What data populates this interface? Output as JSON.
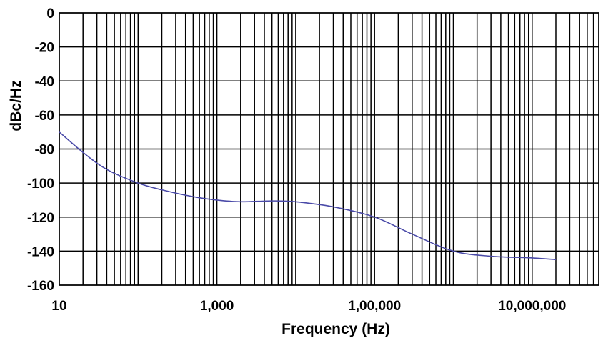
{
  "chart_data": {
    "type": "line",
    "title": "",
    "xlabel": "Frequency (Hz)",
    "ylabel": "dBc/Hz",
    "x_scale": "log",
    "xlim": [
      10,
      70000000
    ],
    "ylim": [
      -160,
      0
    ],
    "grid": true,
    "x_ticks": [
      {
        "value": 10,
        "label": "10"
      },
      {
        "value": 1000,
        "label": "1,000"
      },
      {
        "value": 100000,
        "label": "1,00,000"
      },
      {
        "value": 10000000,
        "label": "10,000,000"
      }
    ],
    "y_ticks": [
      0,
      -20,
      -40,
      -60,
      -80,
      -100,
      -120,
      -140,
      -160
    ],
    "series": [
      {
        "name": "",
        "color": "#4a4aa8",
        "x": [
          10,
          20,
          40,
          100,
          200,
          500,
          1000,
          2000,
          5000,
          10000,
          30000,
          100000,
          300000,
          1000000,
          3000000,
          10000000,
          20000000
        ],
        "y": [
          -70,
          -82,
          -92,
          -100,
          -104,
          -108,
          -110,
          -111,
          -110.5,
          -111,
          -114,
          -120,
          -130,
          -140,
          -143,
          -144,
          -145
        ]
      }
    ]
  }
}
